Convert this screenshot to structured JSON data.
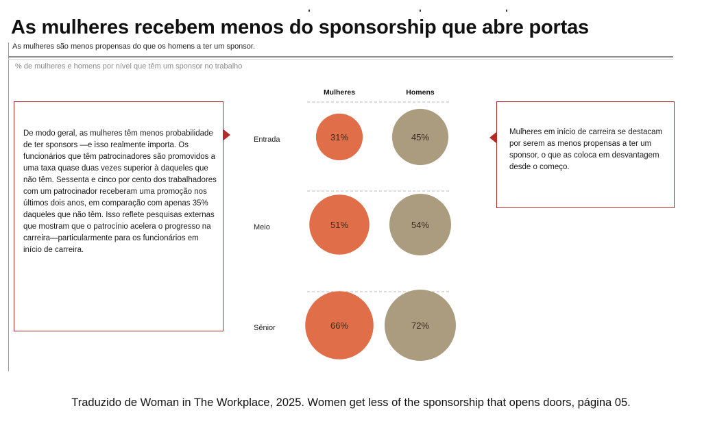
{
  "header": {
    "title": "As mulheres recebem menos do sponsorship que abre portas",
    "subtitle": "As mulheres são menos propensas do que os homens a ter um sponsor."
  },
  "chart_data": {
    "type": "bubble",
    "title": "% de mulheres e homens por nível que têm um sponsor no trabalho",
    "columns": [
      "Mulheres",
      "Homens"
    ],
    "categories": [
      "Entrada",
      "Meio",
      "Sênior"
    ],
    "series": [
      {
        "name": "Mulheres",
        "values": [
          31,
          51,
          66
        ],
        "labels": [
          "31%",
          "51%",
          "66%"
        ]
      },
      {
        "name": "Homens",
        "values": [
          45,
          54,
          72
        ],
        "labels": [
          "45%",
          "54%",
          "72%"
        ]
      }
    ],
    "colors": {
      "Mulheres": "#e06e48",
      "Homens": "#ac9c7f"
    },
    "unit": "%",
    "legend": "column headers at top"
  },
  "callouts": {
    "left": "De modo geral, as mulheres têm menos probabilidade de ter sponsors —e isso realmente importa. Os funcionários que têm patrocinadores são promovidos a uma taxa quase duas vezes superior à daqueles que não têm. Sessenta e cinco por cento dos trabalhadores com um patrocinador receberam uma promoção nos últimos dois anos, em comparação com apenas 35% daqueles que não têm. Isso reflete pesquisas externas que mostram que o patrocínio acelera o progresso na carreira—particularmente para os funcionários em início de carreira.",
    "right": "Mulheres em início de carreira se destacam por serem as menos propensas a ter um sponsor, o que as coloca em desvantagem desde o começo."
  },
  "footer": {
    "source": "Traduzido de Woman in The Workplace, 2025. Women get less of the sponsorship that opens doors, página 05."
  },
  "style": {
    "accent": "#b22a2a"
  }
}
